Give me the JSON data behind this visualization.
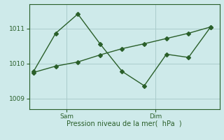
{
  "line1_x": [
    0,
    1,
    2,
    3,
    4,
    5,
    6,
    7,
    8
  ],
  "line1_y": [
    1009.78,
    1010.87,
    1011.42,
    1010.57,
    1009.78,
    1009.37,
    1010.27,
    1010.18,
    1011.05
  ],
  "line2_x": [
    0,
    1,
    2,
    3,
    4,
    5,
    6,
    7,
    8
  ],
  "line2_y": [
    1009.75,
    1009.93,
    1010.05,
    1010.25,
    1010.43,
    1010.57,
    1010.72,
    1010.87,
    1011.05
  ],
  "ylim": [
    1008.7,
    1011.7
  ],
  "yticks": [
    1009,
    1010,
    1011
  ],
  "sam_x": 1.5,
  "dim_x": 5.5,
  "xlim": [
    -0.2,
    8.4
  ],
  "background_color": "#ceeaea",
  "grid_color": "#aacccc",
  "line_color": "#2a5f2a",
  "xlabel": "Pression niveau de la mer(  hPa  )",
  "xlabel_color": "#2a5f2a",
  "tick_color": "#2a5f2a",
  "marker": "D",
  "markersize": 3,
  "linewidth": 1.0,
  "linestyle": "-"
}
